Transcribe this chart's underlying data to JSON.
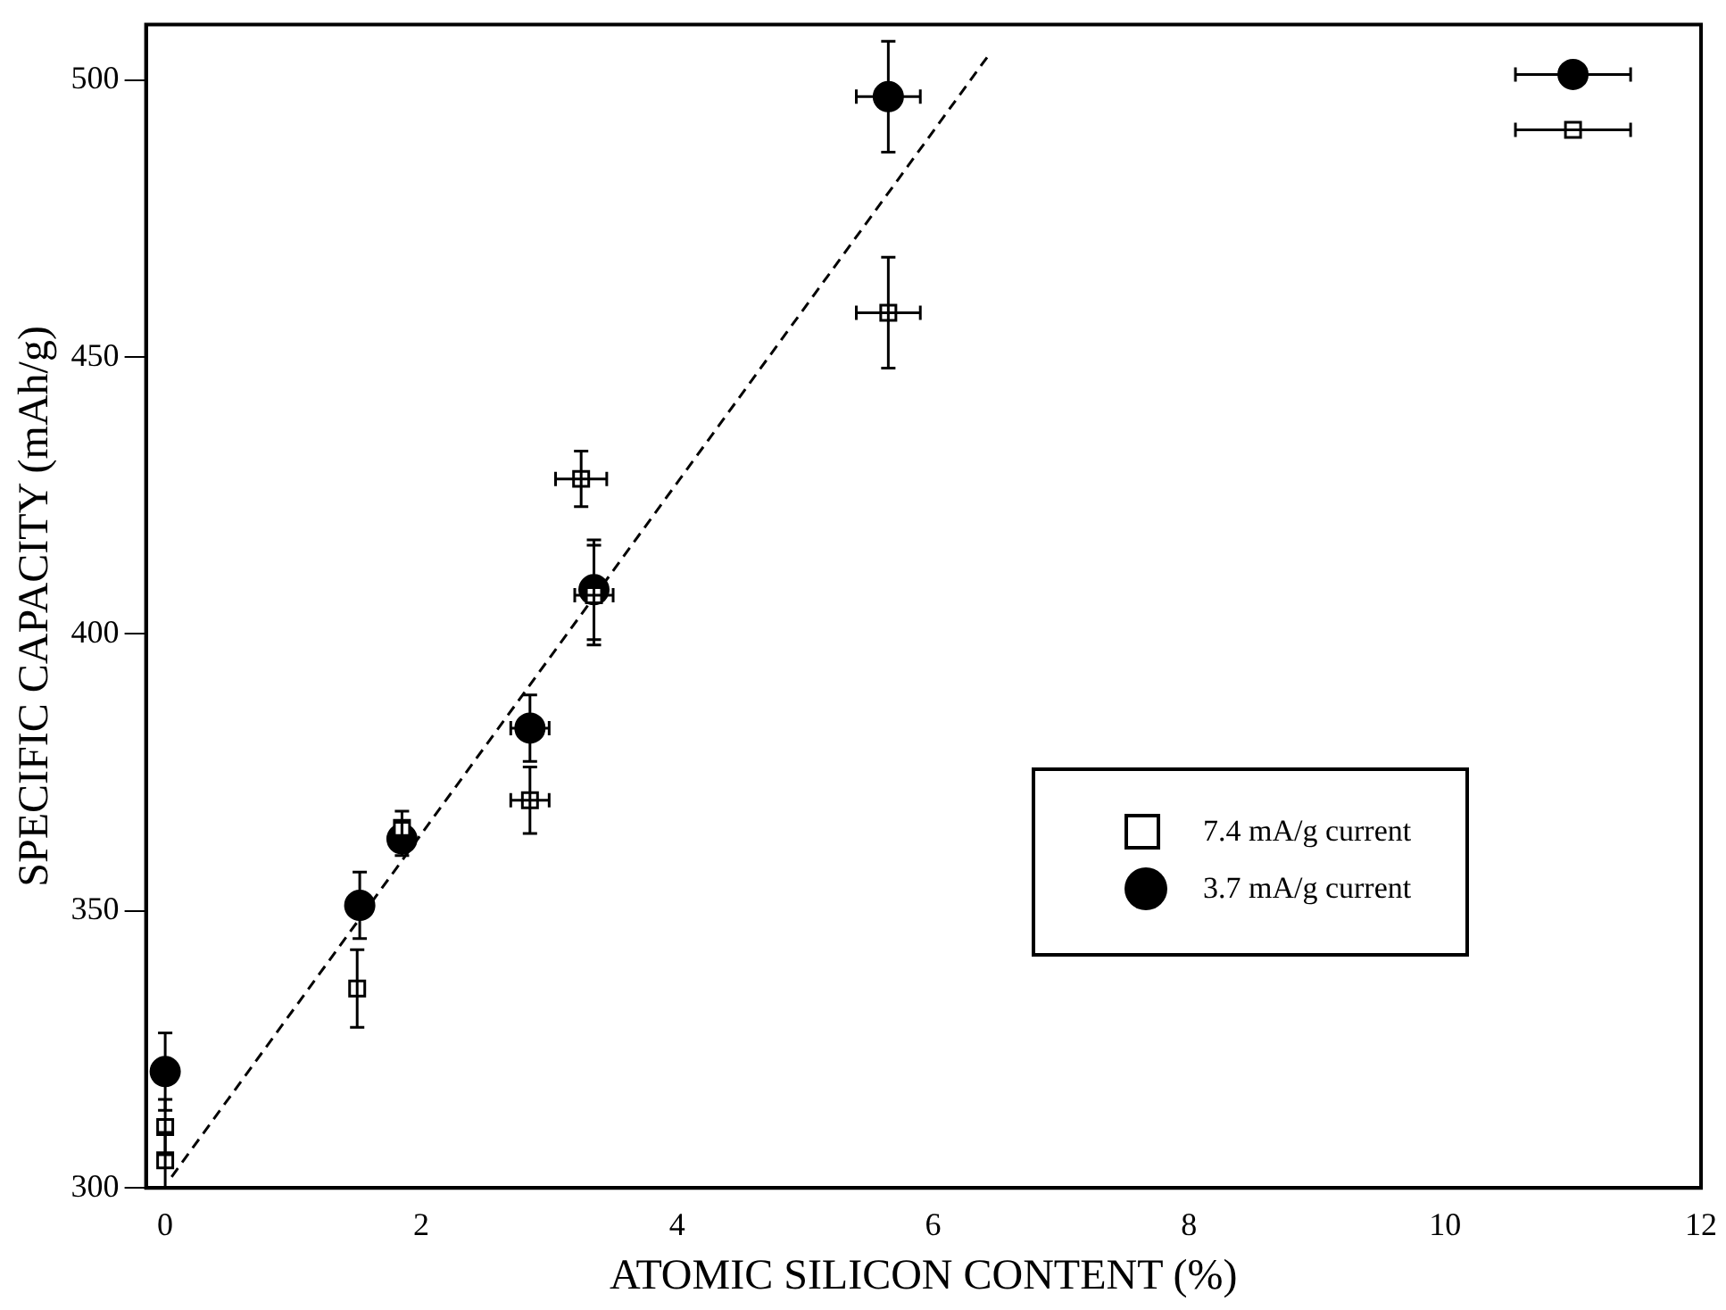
{
  "chart_data": {
    "type": "scatter",
    "xlabel": "ATOMIC SILICON CONTENT (%)",
    "ylabel": "SPECIFIC CAPACITY (mAh/g)",
    "xlim": [
      -0.15,
      12
    ],
    "xticks": [
      0,
      2,
      4,
      6,
      8,
      10,
      12
    ],
    "ylim": [
      300,
      510
    ],
    "yticks": [
      300,
      350,
      400,
      450,
      500
    ],
    "grid": false,
    "legend": "bottom right",
    "series": [
      {
        "name": "7.4 mA/g current",
        "color": "#000000",
        "marker": "square",
        "x": [
          0,
          0,
          1.5,
          1.85,
          2.85,
          3.25,
          3.35,
          5.65,
          11
        ],
        "values": [
          311,
          305,
          336,
          365,
          370,
          428,
          407,
          458,
          491
        ],
        "errors": [
          5,
          5,
          7,
          3,
          6,
          5,
          9,
          10,
          null
        ],
        "xerrors": [
          null,
          null,
          null,
          null,
          0.15,
          0.2,
          0.15,
          0.25,
          0.45
        ]
      },
      {
        "name": "3.7 mA/g current",
        "color": "#000000",
        "marker": "circle",
        "x": [
          0,
          1.52,
          1.85,
          2.85,
          3.35,
          5.65,
          11
        ],
        "values": [
          321,
          351,
          363,
          383,
          408,
          497,
          501
        ],
        "errors": [
          7,
          6,
          3,
          6,
          9,
          10,
          null
        ],
        "xerrors": [
          null,
          null,
          null,
          0.15,
          null,
          0.25,
          0.45
        ]
      },
      {
        "type": "line",
        "color": "#000000",
        "line_style": "dashed",
        "marker": "none",
        "x": [
          0.05,
          6.45
        ],
        "values": [
          302,
          505
        ]
      }
    ]
  }
}
